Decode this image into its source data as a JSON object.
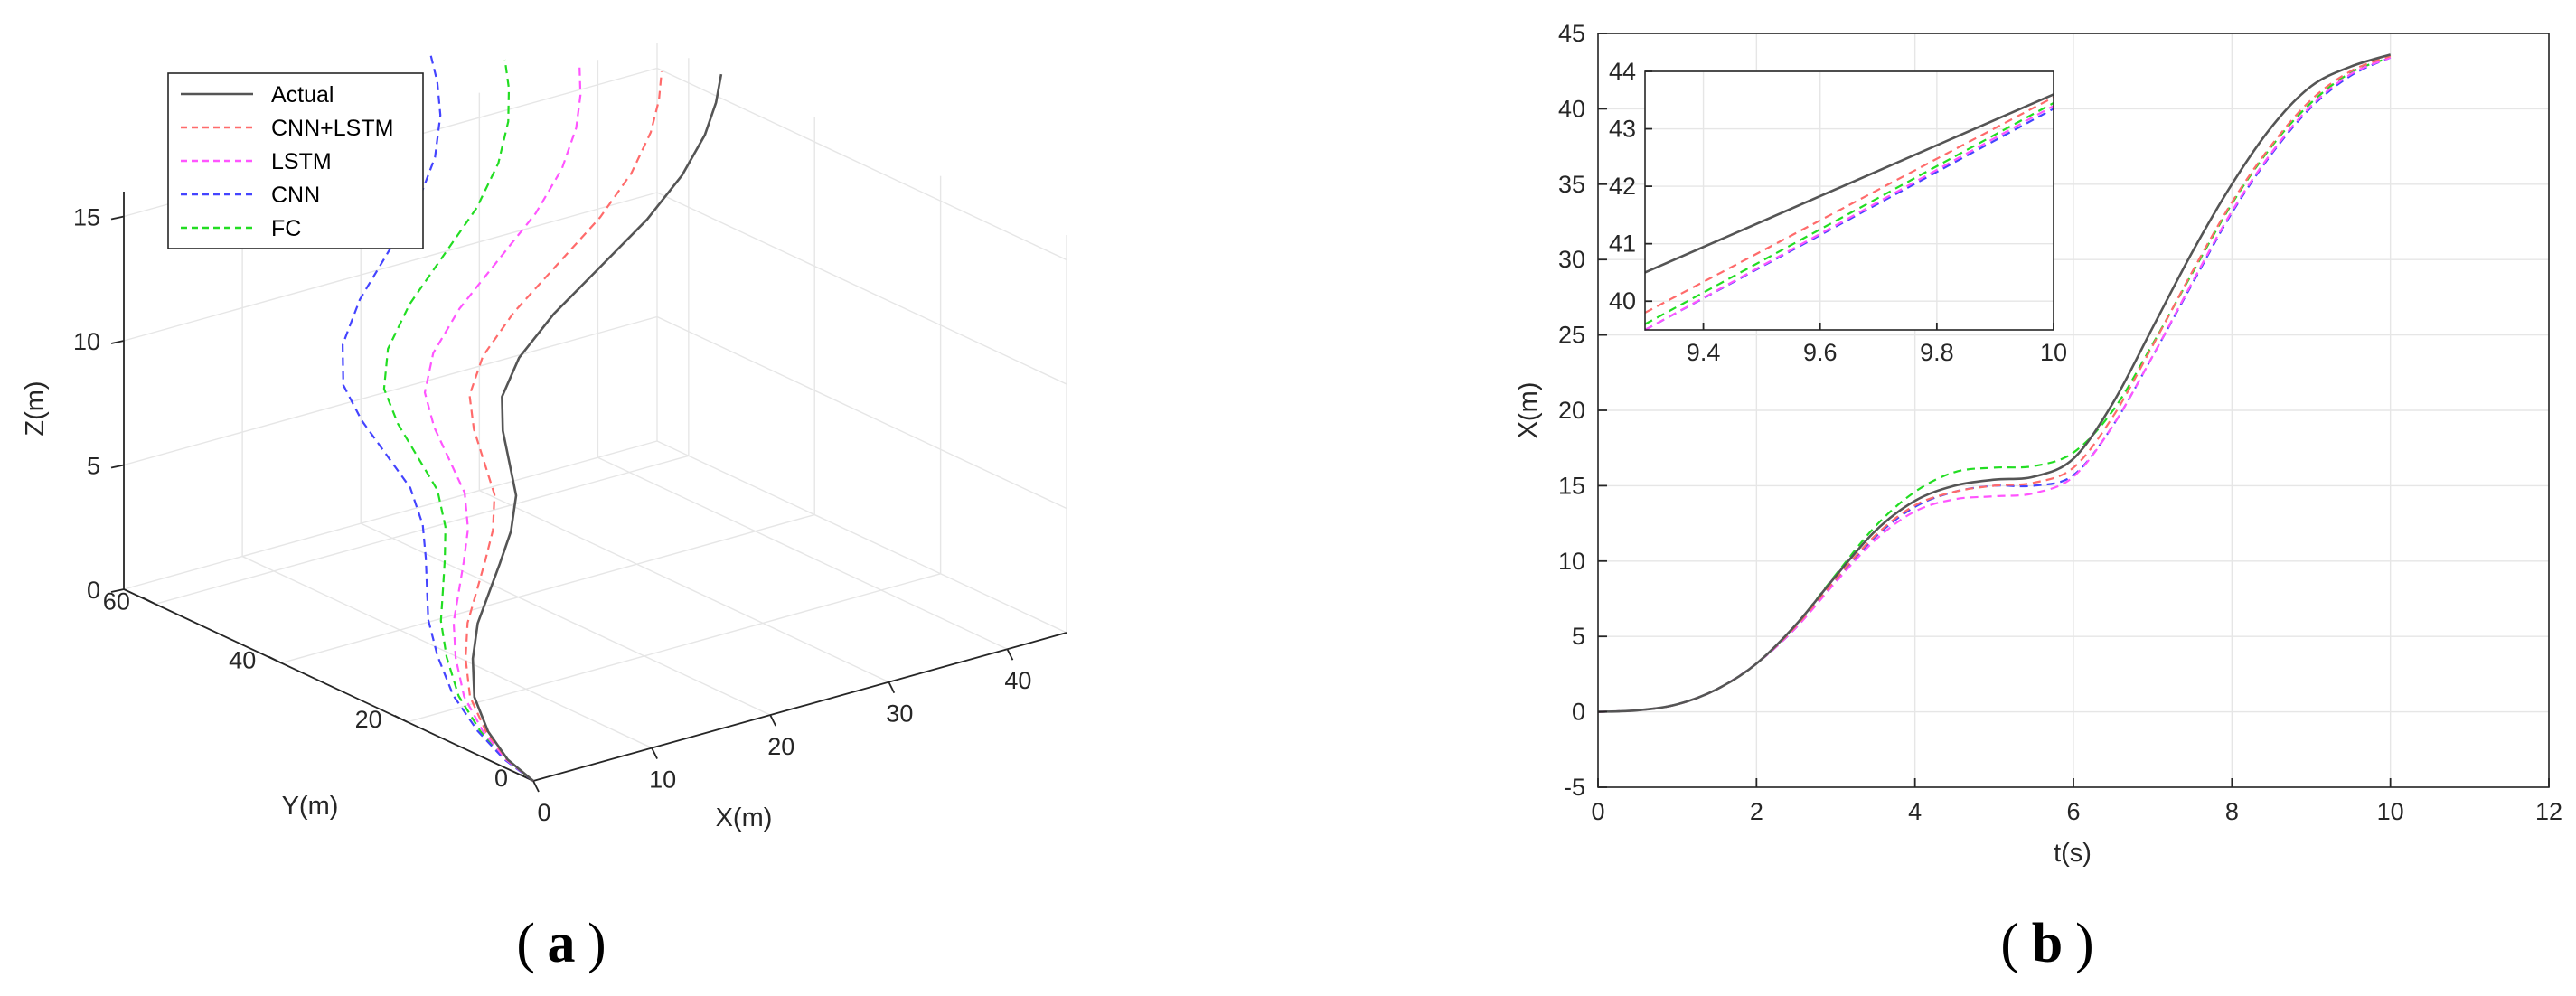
{
  "chart_data": [
    {
      "id": "a",
      "type": "line3d",
      "panel_label": "a",
      "xlabel": "X(m)",
      "ylabel": "Y(m)",
      "zlabel": "Z(m)",
      "xlim": [
        0,
        45
      ],
      "ylim": [
        0,
        65
      ],
      "zlim": [
        0,
        16
      ],
      "x_ticks": [
        "0",
        "10",
        "20",
        "30",
        "40"
      ],
      "y_ticks": [
        "0",
        "20",
        "40",
        "60"
      ],
      "z_ticks": [
        "0",
        "5",
        "10",
        "15"
      ],
      "grid": true,
      "legend_position": "top-left",
      "series": [
        {
          "name": "Actual",
          "color": "#555555",
          "dash": "solid",
          "offset": [
            0,
            0,
            0
          ],
          "points": [
            [
              0,
              0,
              0
            ],
            [
              0.5,
              5,
              0.2
            ],
            [
              1.5,
              10,
              0.6
            ],
            [
              3,
              15,
              1.2
            ],
            [
              5,
              19,
              2.0
            ],
            [
              7,
              22,
              2.8
            ],
            [
              9,
              24,
              3.5
            ],
            [
              11,
              26,
              4.2
            ],
            [
              13,
              28,
              5.0
            ],
            [
              14.5,
              30,
              6.0
            ],
            [
              15,
              32,
              7.0
            ],
            [
              15.5,
              34,
              8.0
            ],
            [
              16.5,
              36,
              9.0
            ],
            [
              19,
              38,
              10.0
            ],
            [
              23,
              40,
              11.0
            ],
            [
              28,
              42,
              12.0
            ],
            [
              33,
              44,
              13.0
            ],
            [
              37,
              46,
              14.0
            ],
            [
              40,
              48,
              15.0
            ],
            [
              42,
              50,
              15.8
            ],
            [
              43.5,
              52,
              16.5
            ]
          ]
        },
        {
          "name": "CNN+LSTM",
          "color": "#ff6b6b",
          "dash": "dashed",
          "offset": [
            -0.6,
            0.4,
            0.15
          ],
          "points": "actual"
        },
        {
          "name": "LSTM",
          "color": "#ff55ff",
          "dash": "dashed",
          "offset": [
            -1.4,
            1.0,
            0.35
          ],
          "points": "actual"
        },
        {
          "name": "CNN",
          "color": "#4444ff",
          "dash": "dashed",
          "offset": [
            -2.8,
            2.2,
            0.75
          ],
          "points": "actual"
        },
        {
          "name": "FC",
          "color": "#22dd22",
          "dash": "dashed",
          "offset": [
            -2.1,
            1.6,
            0.55
          ],
          "points": "actual"
        }
      ]
    },
    {
      "id": "b",
      "type": "line",
      "panel_label": "b",
      "xlabel": "t(s)",
      "ylabel": "X(m)",
      "xlim": [
        0,
        12
      ],
      "ylim": [
        -5,
        45
      ],
      "x_ticks": [
        "0",
        "2",
        "4",
        "6",
        "8",
        "10",
        "12"
      ],
      "y_ticks": [
        "-5",
        "0",
        "5",
        "10",
        "15",
        "20",
        "25",
        "30",
        "35",
        "40",
        "45"
      ],
      "grid": true,
      "x": [
        0,
        0.5,
        1.0,
        1.5,
        2.0,
        2.5,
        3.0,
        3.5,
        4.0,
        4.5,
        5.0,
        5.5,
        6.0,
        6.5,
        7.0,
        7.5,
        8.0,
        8.5,
        9.0,
        9.5,
        10.0
      ],
      "series": [
        {
          "name": "Actual",
          "color": "#555555",
          "dash": "solid",
          "values": [
            0,
            0.1,
            0.5,
            1.5,
            3.2,
            5.8,
            9.0,
            12.0,
            14.0,
            15.0,
            15.4,
            15.6,
            16.8,
            20.5,
            25.5,
            30.5,
            35.0,
            38.8,
            41.5,
            42.8,
            43.6
          ]
        },
        {
          "name": "CNN+LSTM",
          "color": "#ff6b6b",
          "dash": "dashed",
          "values": [
            0,
            0.1,
            0.5,
            1.5,
            3.2,
            5.7,
            8.8,
            11.7,
            13.7,
            14.6,
            15.0,
            15.2,
            16.2,
            19.6,
            24.3,
            29.2,
            33.8,
            37.6,
            40.6,
            42.5,
            43.5
          ]
        },
        {
          "name": "LSTM",
          "color": "#ff55ff",
          "dash": "dashed",
          "values": [
            0,
            0.1,
            0.5,
            1.5,
            3.2,
            5.6,
            8.6,
            11.4,
            13.3,
            14.1,
            14.3,
            14.5,
            15.6,
            19.0,
            23.6,
            28.5,
            33.2,
            37.1,
            40.2,
            42.3,
            43.4
          ]
        },
        {
          "name": "CNN",
          "color": "#4444ff",
          "dash": "dashed",
          "values": [
            0,
            0.1,
            0.5,
            1.5,
            3.2,
            5.6,
            8.7,
            11.6,
            13.6,
            14.6,
            15.0,
            15.0,
            15.7,
            19.0,
            23.6,
            28.4,
            33.1,
            37.0,
            40.1,
            42.2,
            43.4
          ]
        },
        {
          "name": "FC",
          "color": "#22dd22",
          "dash": "dashed",
          "values": [
            0,
            0.1,
            0.5,
            1.5,
            3.2,
            5.8,
            9.1,
            12.3,
            14.6,
            15.9,
            16.2,
            16.3,
            17.2,
            20.0,
            24.4,
            29.1,
            33.7,
            37.5,
            40.4,
            42.4,
            43.4
          ]
        }
      ],
      "inset": {
        "xlim": [
          9.3,
          10
        ],
        "ylim": [
          39.5,
          44
        ],
        "x_ticks": [
          "9.4",
          "9.6",
          "9.8",
          "10"
        ],
        "y_ticks": [
          "40",
          "41",
          "42",
          "43",
          "44"
        ],
        "series": [
          {
            "name": "Actual",
            "x": [
              9.3,
              10
            ],
            "values": [
              40.5,
              43.6
            ]
          },
          {
            "name": "CNN+LSTM",
            "x": [
              9.3,
              10
            ],
            "values": [
              39.8,
              43.55
            ]
          },
          {
            "name": "LSTM",
            "x": [
              9.3,
              10
            ],
            "values": [
              39.5,
              43.4
            ]
          },
          {
            "name": "CNN",
            "x": [
              9.3,
              10
            ],
            "values": [
              39.5,
              43.35
            ]
          },
          {
            "name": "FC",
            "x": [
              9.3,
              10
            ],
            "values": [
              39.6,
              43.45
            ]
          }
        ]
      }
    }
  ]
}
